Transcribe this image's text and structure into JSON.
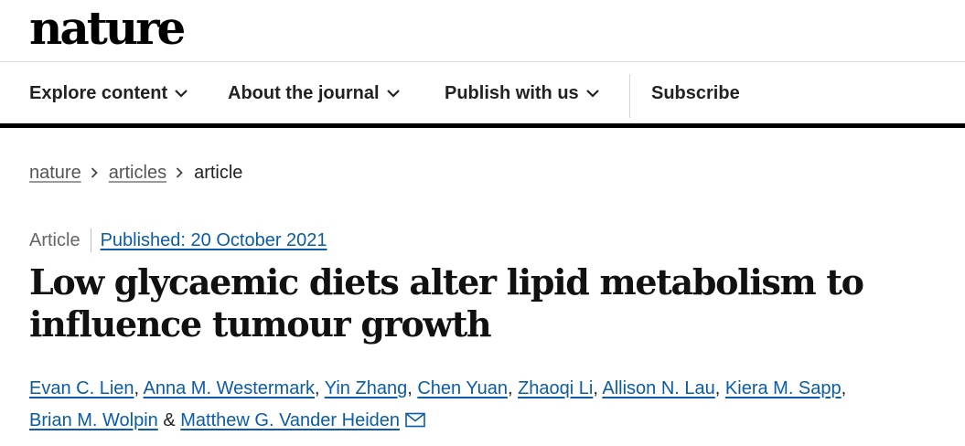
{
  "site": {
    "logo": "nature"
  },
  "nav": {
    "items": [
      {
        "label": "Explore content",
        "icon": "chevron-down-icon"
      },
      {
        "label": "About the journal",
        "icon": "chevron-down-icon"
      },
      {
        "label": "Publish with us",
        "icon": "chevron-down-icon"
      }
    ],
    "subscribe_label": "Subscribe"
  },
  "breadcrumb": {
    "items": [
      {
        "label": "nature"
      },
      {
        "label": "articles"
      },
      {
        "label": "article"
      }
    ],
    "separator_icon": "chevron-right-icon"
  },
  "article": {
    "type": "Article",
    "published": "Published: 20 October 2021",
    "title": "Low glycaemic diets alter lipid metabolism to influence tumour growth",
    "authors": [
      "Evan C. Lien",
      "Anna M. Westermark",
      "Yin Zhang",
      "Chen Yuan",
      "Zhaoqi Li",
      "Allison N. Lau",
      "Kiera M. Sapp",
      "Brian M. Wolpin",
      "Matthew G. Vander Heiden"
    ],
    "author_separator": ",",
    "last_author_separator": "&",
    "contact_icon": "envelope-icon"
  },
  "colors": {
    "link": "#0a5ca8",
    "text": "#222222",
    "muted": "#666666",
    "nav_border": "#000000"
  }
}
